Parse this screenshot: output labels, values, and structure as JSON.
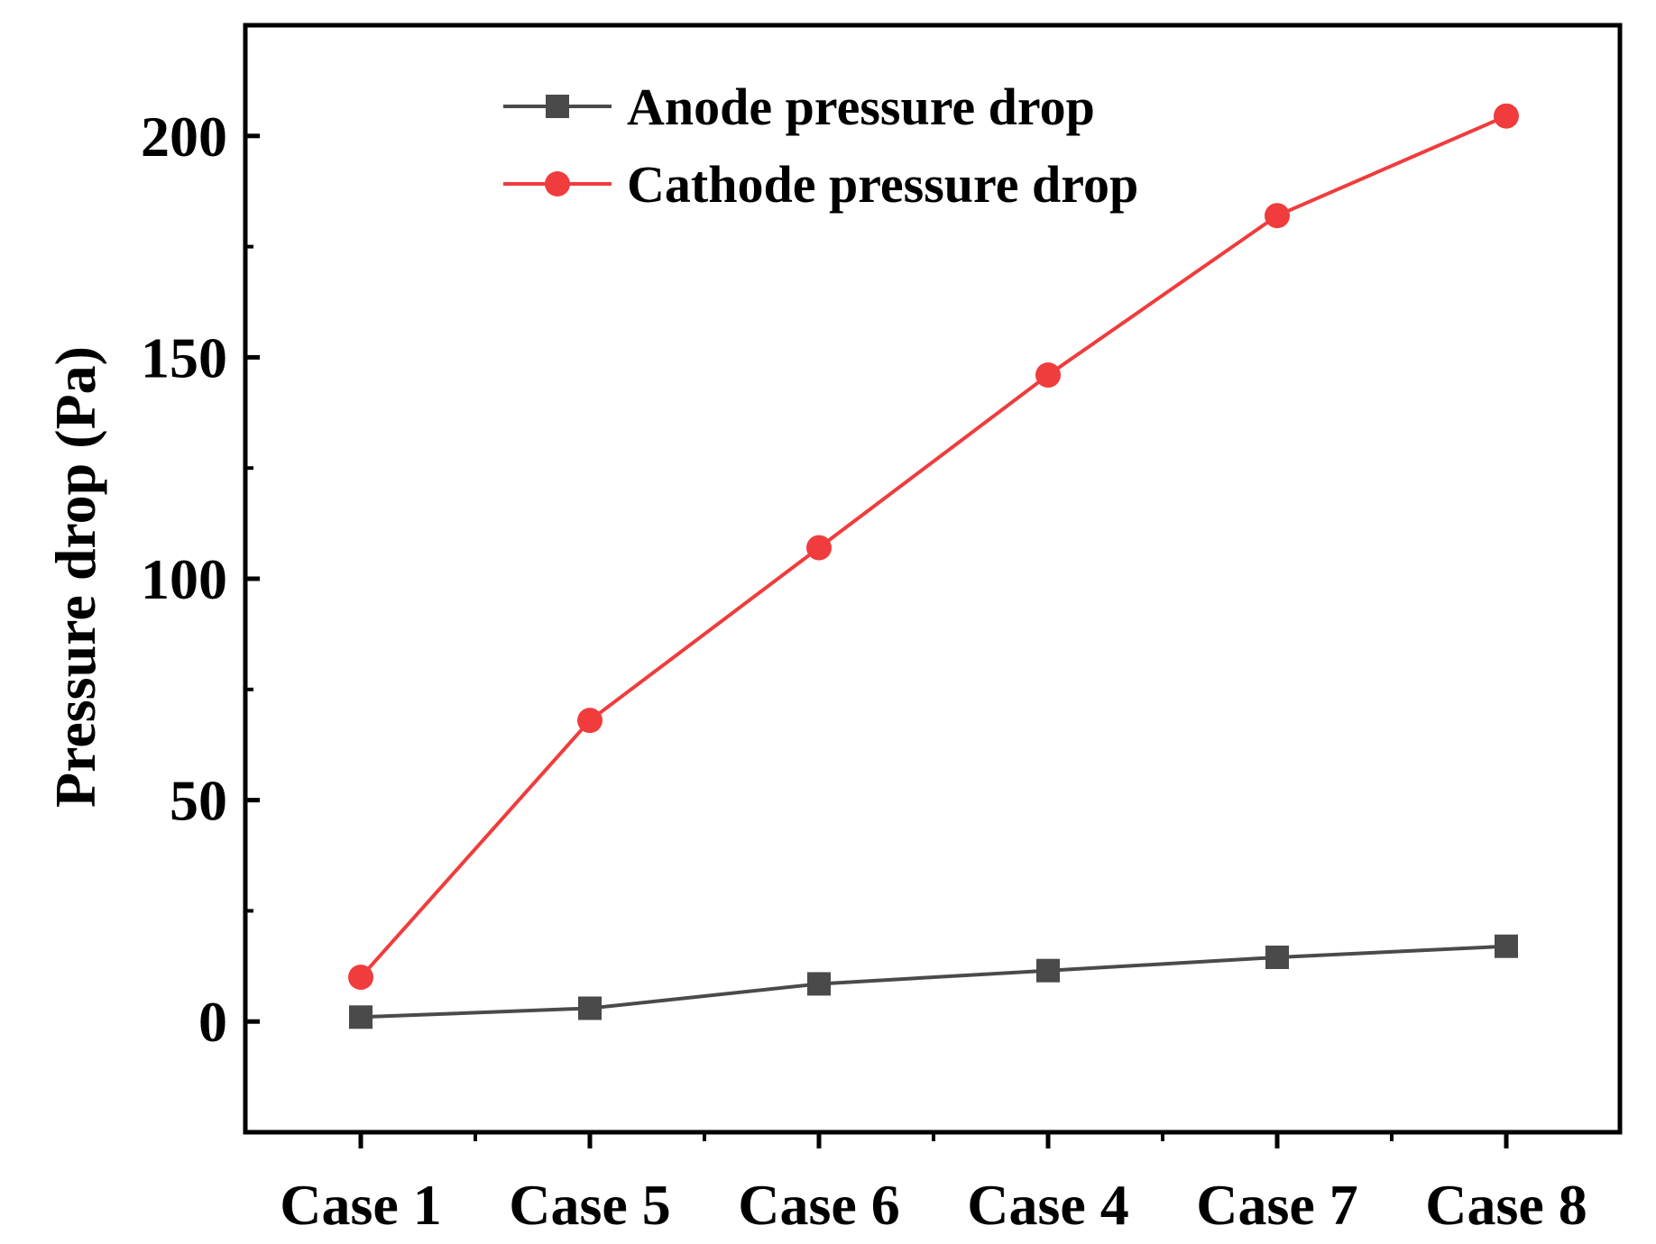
{
  "chart_data": {
    "type": "line",
    "title": "",
    "xlabel": "",
    "ylabel": "Pressure drop (Pa)",
    "categories": [
      "Case 1",
      "Case 5",
      "Case 6",
      "Case 4",
      "Case 7",
      "Case 8"
    ],
    "ylim": [
      -25,
      225
    ],
    "yticks": [
      0,
      50,
      100,
      150,
      200
    ],
    "yticks_minor": [
      25,
      75,
      125,
      175
    ],
    "grid": false,
    "legend_position": "top-center",
    "series": [
      {
        "name": "Anode pressure drop",
        "marker": "square",
        "color": "#4a4a4a",
        "values": [
          1,
          3,
          8.5,
          11.5,
          14.5,
          17
        ]
      },
      {
        "name": "Cathode pressure drop",
        "marker": "circle",
        "color": "#f03c3c",
        "values": [
          10,
          68,
          107,
          146,
          182,
          204.5
        ]
      }
    ]
  }
}
